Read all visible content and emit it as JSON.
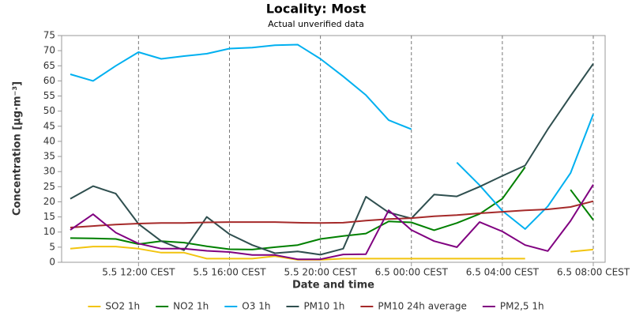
{
  "chart_data": {
    "type": "line",
    "title": "Locality: Most",
    "subtitle": "Actual unverified data",
    "x_label": "Date and time",
    "y_label": "Concentration [µg·m⁻³]",
    "categories": [
      null,
      null,
      null,
      "5.5 12:00 CEST",
      null,
      null,
      null,
      "5.5 16:00 CEST",
      null,
      null,
      null,
      "5.5 20:00 CEST",
      null,
      null,
      null,
      "6.5 00:00 CEST",
      null,
      null,
      null,
      "6.5 04:00 CEST",
      null,
      null,
      null,
      "6.5 08:00 CEST"
    ],
    "ylim": [
      0,
      75
    ],
    "yticks": [
      0,
      5,
      10,
      15,
      20,
      25,
      30,
      35,
      40,
      45,
      50,
      55,
      60,
      65,
      70,
      75
    ],
    "grid": "x-dashed",
    "legend": "bottom",
    "series": [
      {
        "name": "SO2 1h",
        "color": "#f2c40f",
        "values": [
          4.5,
          5.2,
          5.2,
          4.5,
          3.2,
          3.2,
          1.2,
          1.2,
          1.2,
          2,
          0.8,
          0.8,
          1.2,
          1.2,
          1.2,
          1.2,
          1.2,
          1.2,
          1.2,
          1.2,
          1.2,
          null,
          3.5,
          4.2
        ]
      },
      {
        "name": "NO2 1h",
        "color": "#008000",
        "values": [
          8,
          7.9,
          7.7,
          6,
          7,
          6.5,
          5.3,
          4.3,
          4.2,
          5,
          5.7,
          7.7,
          8.7,
          9.5,
          13.5,
          13.2,
          10.6,
          13,
          16,
          21,
          31.5,
          null,
          24,
          14
        ]
      },
      {
        "name": "O3 1h",
        "color": "#00b0f0",
        "values": [
          62.2,
          60,
          65,
          69.5,
          67.3,
          68.2,
          69,
          70.7,
          71,
          71.8,
          72,
          67.3,
          61.5,
          55.3,
          47,
          44,
          null,
          33,
          25.5,
          17,
          11,
          18.5,
          29.5,
          49
        ]
      },
      {
        "name": "PM10 1h",
        "color": "#2f4f4f",
        "values": [
          21,
          25.2,
          22.7,
          12.7,
          7,
          4,
          15,
          9.3,
          5.7,
          3,
          3.6,
          2.5,
          4.5,
          21.7,
          16.5,
          14.5,
          22.4,
          21.8,
          25,
          28.6,
          32,
          44,
          55,
          65.7
        ]
      },
      {
        "name": "PM10 24h average",
        "color": "#a52a2a",
        "values": [
          11.5,
          12,
          12.5,
          12.8,
          13,
          13,
          13.2,
          13.3,
          13.3,
          13.3,
          13.1,
          13,
          13.1,
          13.8,
          14.3,
          14.6,
          15.2,
          15.6,
          16.2,
          16.7,
          17.2,
          17.5,
          18.3,
          20.2
        ]
      },
      {
        "name": "PM2,5 1h",
        "color": "#800080",
        "values": [
          10.7,
          15.9,
          9.8,
          6.2,
          4.5,
          4.5,
          3.8,
          3.4,
          2.4,
          2.4,
          1,
          1,
          2.6,
          2.7,
          17.2,
          10.7,
          7,
          5,
          13.3,
          10.2,
          5.7,
          3.7,
          13.7,
          25.7
        ]
      }
    ]
  }
}
